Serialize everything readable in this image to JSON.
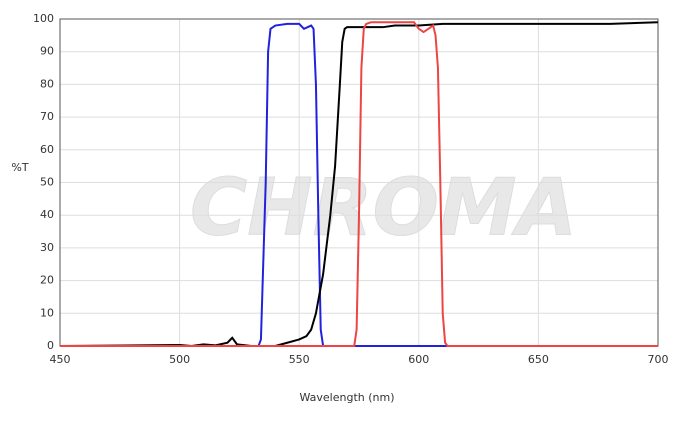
{
  "chart_data": {
    "type": "line",
    "watermark": "CHROMA",
    "x_label": "Wavelength (nm)",
    "y_label": "%T",
    "xlim": [
      450,
      700
    ],
    "xticks": [
      450,
      500,
      550,
      600,
      650,
      700
    ],
    "ylim": [
      0,
      100
    ],
    "yticks": [
      0,
      10,
      20,
      30,
      40,
      50,
      60,
      70,
      80,
      90,
      100
    ],
    "grid": true,
    "series": [
      {
        "color": "#2222dd",
        "x": [
          450,
          533,
          534,
          536,
          537,
          538,
          540,
          545,
          550,
          552,
          555,
          556,
          557,
          558,
          559,
          560,
          700
        ],
        "values": [
          0,
          0,
          2,
          50,
          90,
          97,
          98,
          98.5,
          98.5,
          97,
          98,
          97,
          80,
          40,
          5,
          0,
          0
        ]
      },
      {
        "color": "#000000",
        "x": [
          450,
          500,
          505,
          510,
          515,
          520,
          522,
          524,
          530,
          540,
          545,
          550,
          553,
          555,
          557,
          560,
          563,
          565,
          567,
          568,
          569,
          570,
          580,
          585,
          590,
          600,
          610,
          620,
          650,
          680,
          700
        ],
        "values": [
          0,
          0.3,
          0,
          0.5,
          0.2,
          1,
          2.5,
          0.5,
          0,
          0,
          1,
          2,
          3,
          5,
          10,
          22,
          40,
          55,
          80,
          93,
          97,
          97.5,
          97.5,
          97.5,
          98,
          98,
          98.5,
          98.5,
          98.5,
          98.5,
          99
        ]
      },
      {
        "color": "#ee4444",
        "x": [
          450,
          573,
          574,
          575,
          576,
          577,
          578,
          580,
          590,
          598,
          600,
          602,
          604,
          606,
          607,
          608,
          609,
          610,
          611,
          612,
          700
        ],
        "values": [
          0,
          0,
          5,
          40,
          85,
          97,
          98.5,
          99,
          99,
          99,
          97,
          96,
          97,
          98,
          95,
          85,
          50,
          10,
          1,
          0,
          0
        ]
      }
    ]
  }
}
